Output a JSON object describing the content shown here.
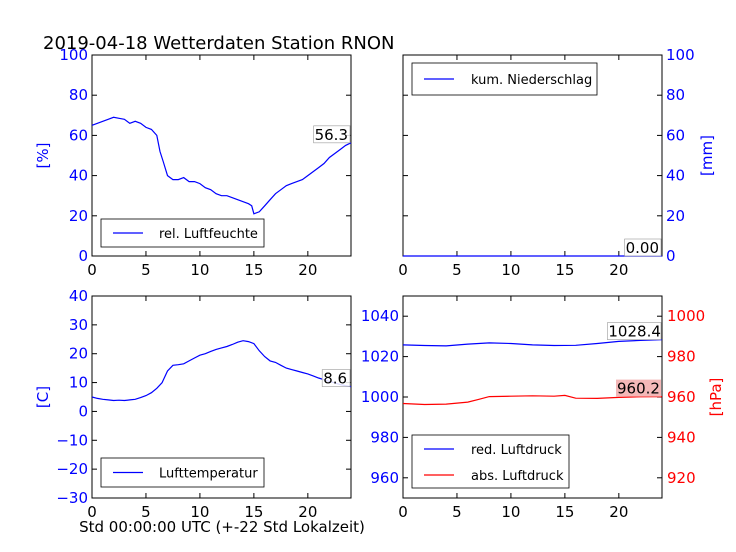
{
  "figure": {
    "title": "2019-04-18 Wetterdaten Station RNON",
    "xlabel": "Std 00:00:00 UTC (+-22 Std Lokalzeit)"
  },
  "colors": {
    "blue": "#0000ff",
    "red": "#ff0000",
    "black": "#000000",
    "badge_red": "#f4b8b8"
  },
  "chart_data": [
    {
      "id": "humidity",
      "type": "line",
      "ylabel": "[%]",
      "xlim": [
        0,
        24
      ],
      "ylim": [
        0,
        100
      ],
      "xticks": [
        0,
        5,
        10,
        15,
        20
      ],
      "yticks": [
        0,
        20,
        40,
        60,
        80,
        100
      ],
      "yaxis_side": "left",
      "ytick_color": "#0000ff",
      "series": [
        {
          "name": "rel. Luftfeuchte",
          "color": "#0000ff",
          "last_label": "56.3",
          "x": [
            0,
            0.5,
            1,
            1.5,
            2,
            2.5,
            3,
            3.5,
            4,
            4.5,
            5,
            5.5,
            6,
            6.3,
            6.6,
            7,
            7.5,
            8,
            8.5,
            9,
            9.5,
            10,
            10.5,
            11,
            11.5,
            12,
            12.5,
            13,
            13.5,
            14,
            14.5,
            14.8,
            15,
            15.5,
            16,
            16.5,
            17,
            17.5,
            18,
            18.5,
            19,
            19.5,
            20,
            20.5,
            21,
            21.5,
            22,
            22.5,
            23,
            23.5,
            24
          ],
          "y": [
            65,
            66,
            67,
            68,
            69,
            68.5,
            68,
            66,
            67,
            66,
            64,
            63,
            60,
            52,
            47,
            40,
            38,
            38,
            39,
            37,
            37,
            36,
            34,
            33,
            31,
            30,
            30,
            29,
            28,
            27,
            26,
            25,
            21,
            22,
            25,
            28,
            31,
            33,
            35,
            36,
            37,
            38,
            40,
            42,
            44,
            46,
            49,
            51,
            53,
            55,
            56.3
          ]
        }
      ]
    },
    {
      "id": "precipitation",
      "type": "line",
      "ylabel": "[mm]",
      "xlim": [
        0,
        24
      ],
      "ylim": [
        0,
        100
      ],
      "xticks": [
        0,
        5,
        10,
        15,
        20
      ],
      "yticks": [
        0,
        20,
        40,
        60,
        80,
        100
      ],
      "yaxis_side": "right",
      "ytick_color": "#0000ff",
      "series": [
        {
          "name": "kum. Niederschlag",
          "color": "#0000ff",
          "last_label": "0.00",
          "x": [
            0,
            24
          ],
          "y": [
            0,
            0
          ]
        }
      ]
    },
    {
      "id": "temperature",
      "type": "line",
      "ylabel": "[C]",
      "xlim": [
        0,
        24
      ],
      "ylim": [
        -30,
        40
      ],
      "xticks": [
        0,
        5,
        10,
        15,
        20
      ],
      "yticks": [
        -30,
        -20,
        -10,
        0,
        10,
        20,
        30,
        40
      ],
      "yaxis_side": "left",
      "ytick_color": "#0000ff",
      "series": [
        {
          "name": "Lufttemperatur",
          "color": "#0000ff",
          "last_label": "8.6",
          "x": [
            0,
            0.5,
            1,
            1.5,
            2,
            2.5,
            3,
            3.5,
            4,
            4.5,
            5,
            5.5,
            6,
            6.5,
            7,
            7.5,
            8,
            8.5,
            9,
            9.5,
            10,
            10.5,
            11,
            11.5,
            12,
            12.5,
            13,
            13.5,
            14,
            14.5,
            15,
            15.5,
            16,
            16.5,
            17,
            17.5,
            18,
            18.5,
            19,
            19.5,
            20,
            20.5,
            21,
            21.5,
            22,
            22.5,
            23,
            23.5,
            24
          ],
          "y": [
            5,
            4.5,
            4.2,
            4,
            3.8,
            3.9,
            3.8,
            4,
            4.2,
            4.8,
            5.5,
            6.5,
            8,
            10,
            14,
            16,
            16.2,
            16.5,
            17.5,
            18.5,
            19.5,
            20,
            20.8,
            21.5,
            22,
            22.5,
            23.2,
            24,
            24.5,
            24.2,
            23.5,
            21,
            19,
            17.5,
            17,
            16,
            15,
            14.5,
            14,
            13.5,
            13,
            12.3,
            11.6,
            11,
            10.4,
            9.9,
            9.3,
            8.9,
            8.6
          ]
        }
      ]
    },
    {
      "id": "pressure",
      "type": "line",
      "ylabel": "[hPa]",
      "xlim": [
        0,
        24
      ],
      "ylim": [
        950,
        1050
      ],
      "xticks": [
        0,
        5,
        10,
        15,
        20
      ],
      "yticks": [
        960,
        980,
        1000,
        1020,
        1040
      ],
      "yaxis_side": "left",
      "ytick_color": "#0000ff",
      "ylim_right": [
        910,
        1010
      ],
      "yticks_right": [
        920,
        940,
        960,
        980,
        1000
      ],
      "ytick_color_right": "#ff0000",
      "series": [
        {
          "name": "red. Luftdruck",
          "color": "#0000ff",
          "axis": "left",
          "last_label": "1028.4",
          "x": [
            0,
            2,
            4,
            6,
            8,
            10,
            12,
            14,
            16,
            18,
            20,
            22,
            24
          ],
          "y": [
            1025.8,
            1025.5,
            1025.3,
            1026.2,
            1026.8,
            1026.5,
            1025.8,
            1025.5,
            1025.6,
            1026.5,
            1027.5,
            1028,
            1028.4
          ]
        },
        {
          "name": "abs. Luftdruck",
          "color": "#ff0000",
          "axis": "right",
          "last_label": "960.2",
          "x": [
            0,
            2,
            4,
            6,
            7,
            8,
            10,
            12,
            14,
            15,
            16,
            18,
            20,
            22,
            24
          ],
          "y": [
            956.8,
            956.3,
            956.5,
            957.5,
            958.8,
            960.2,
            960.4,
            960.6,
            960.4,
            960.8,
            959.4,
            959.3,
            959.8,
            960.1,
            960.2
          ]
        }
      ]
    }
  ]
}
